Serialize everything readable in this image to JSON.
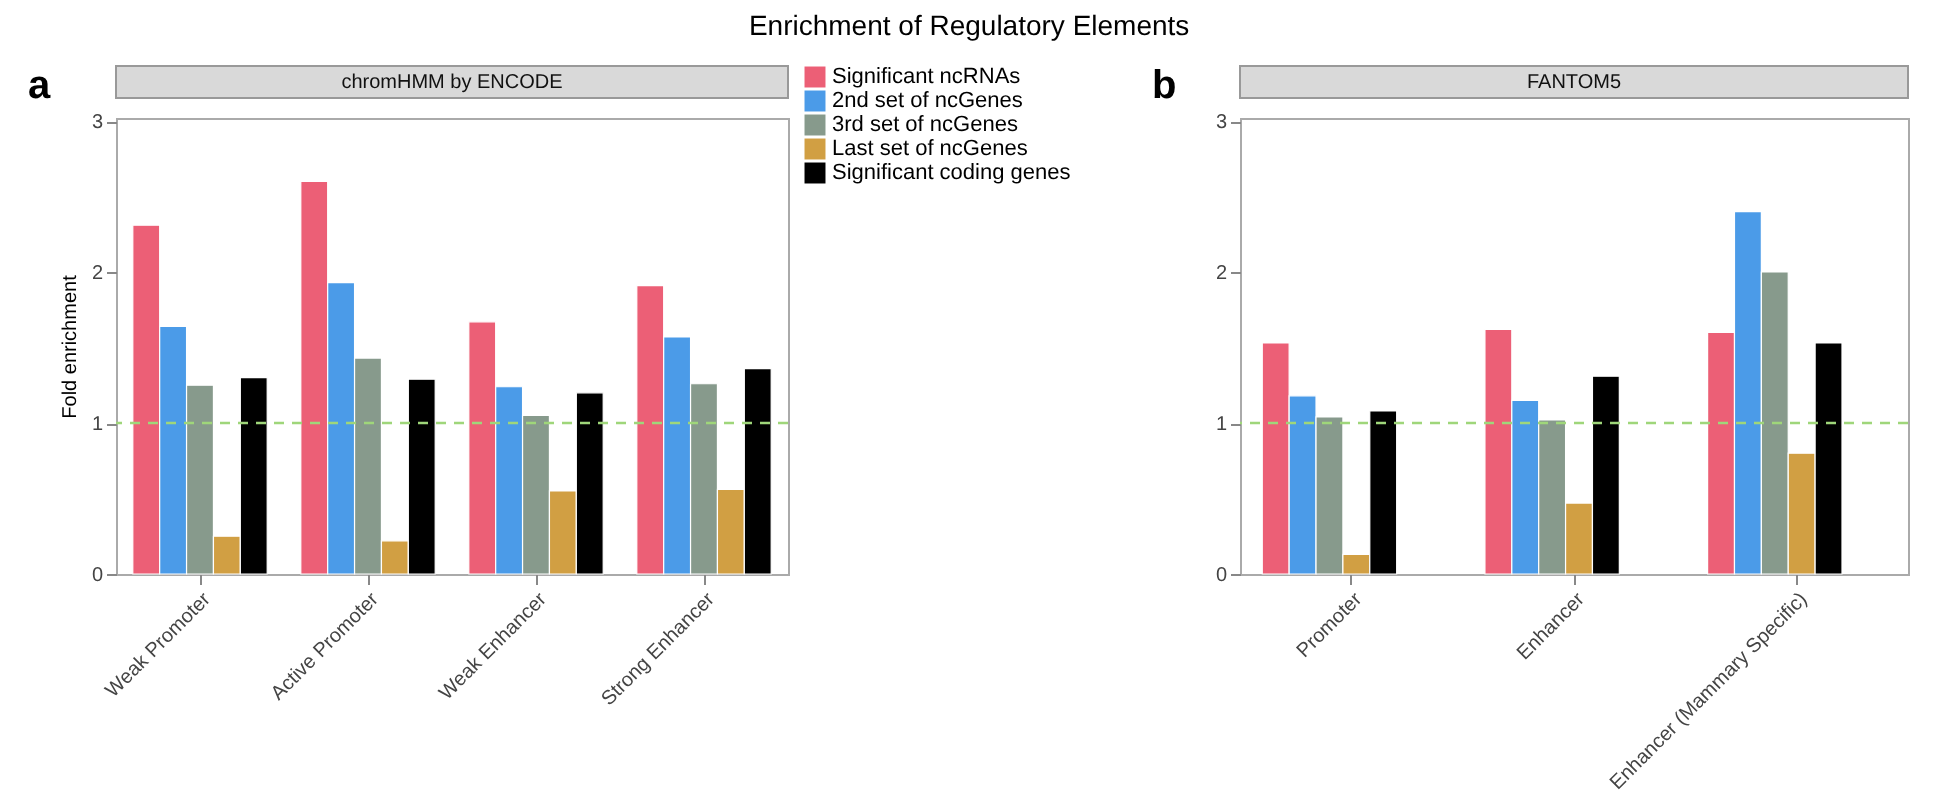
{
  "chart_data": [
    {
      "type": "bar",
      "title": "Enrichment of Regulatory Elements",
      "subtitle": "chromHMM by ENCODE",
      "annotations": [
        "a"
      ],
      "ylabel": "Fold enrichment",
      "categories": [
        "Weak Promoter",
        "Active Promoter",
        "Weak Enhancer",
        "Strong Enhancer"
      ],
      "series": [
        {
          "name": "Significant ncRNAs",
          "color": "#ec5f76",
          "values": [
            2.31,
            2.6,
            1.67,
            1.91
          ]
        },
        {
          "name": "2nd set of ncGenes",
          "color": "#4b9be8",
          "values": [
            1.64,
            1.93,
            1.24,
            1.57
          ]
        },
        {
          "name": "3rd set of ncGenes",
          "color": "#879a8c",
          "values": [
            1.25,
            1.43,
            1.05,
            1.26
          ]
        },
        {
          "name": "Last set of ncGenes",
          "color": "#d19f43",
          "values": [
            0.25,
            0.22,
            0.55,
            0.56
          ]
        },
        {
          "name": "Significant coding genes",
          "color": "#000000",
          "values": [
            1.3,
            1.29,
            1.2,
            1.36
          ]
        }
      ],
      "ylim": [
        0,
        3.02
      ],
      "yticks": [
        0,
        1,
        2,
        3
      ],
      "ref_lines": [
        {
          "axis": "y",
          "value": 1,
          "color": "#9fd67a",
          "line_style": "dashed"
        }
      ],
      "grid": false,
      "legend": "right"
    },
    {
      "type": "bar",
      "subtitle": "FANTOM5",
      "annotations": [
        "b"
      ],
      "categories": [
        "Promoter",
        "Enhancer",
        "Enhancer (Mammary Specific)"
      ],
      "series": [
        {
          "color": "#ec5f76",
          "values": [
            1.53,
            1.62,
            1.6
          ]
        },
        {
          "color": "#4b9be8",
          "values": [
            1.18,
            1.15,
            2.4
          ]
        },
        {
          "color": "#879a8c",
          "values": [
            1.04,
            1.02,
            2.0
          ]
        },
        {
          "color": "#d19f43",
          "values": [
            0.13,
            0.47,
            0.8
          ]
        },
        {
          "color": "#000000",
          "values": [
            1.08,
            1.31,
            1.53
          ]
        }
      ],
      "ylim": [
        0,
        3.02
      ],
      "yticks": [
        0,
        1,
        2,
        3
      ],
      "ref_lines": [
        {
          "axis": "y",
          "value": 1,
          "color": "#9fd67a",
          "line_style": "dashed"
        }
      ],
      "grid": false
    }
  ]
}
